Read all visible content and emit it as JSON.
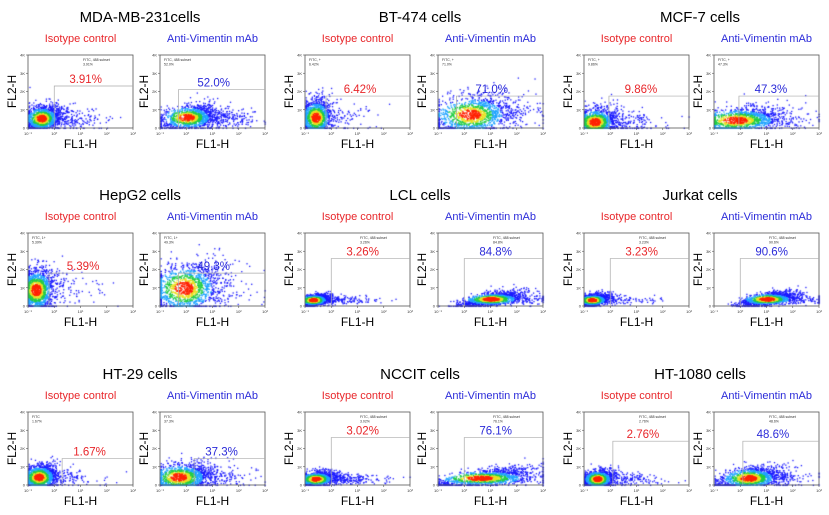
{
  "colors": {
    "isotype": "#e8262a",
    "anti": "#2b2bd9",
    "density_low": "#1a1aff",
    "density_mid": "#22cc44",
    "density_high": "#ff2200"
  },
  "chart_data": {
    "type": "scatter",
    "subtype": "flow-cytometry density plots",
    "xlabel": "FL1-H",
    "ylabel": "FL2-H",
    "x_scale": "log",
    "x_ticks": [
      "10⁻¹",
      "10⁰",
      "10¹",
      "10²",
      "10³"
    ],
    "y_ticks": [
      "0",
      "1K",
      "2K",
      "3K",
      "4K"
    ],
    "xlim": [
      0.1,
      1000
    ],
    "ylim": [
      0,
      4000
    ],
    "panels": [
      {
        "title": "MDA-MB-231cells",
        "plots": [
          {
            "label": "Isotype control",
            "gate_label": "FITC, 488 subset",
            "gate_pct": "3.91%",
            "pct": "3.91%"
          },
          {
            "label": "Anti-Vimentin mAb",
            "gate_label": "FITC, 488 subset",
            "gate_pct": "52.0%",
            "pct": "52.0%"
          }
        ]
      },
      {
        "title": "BT-474 cells",
        "plots": [
          {
            "label": "Isotype control",
            "gate_label": "FITC, +",
            "gate_pct": "6.42%",
            "pct": "6.42%"
          },
          {
            "label": "Anti-Vimentin mAb",
            "gate_label": "FITC, +",
            "gate_pct": "71.0%",
            "pct": "71.0%"
          }
        ]
      },
      {
        "title": "MCF-7 cells",
        "plots": [
          {
            "label": "Isotype control",
            "gate_label": "FITC, +",
            "gate_pct": "9.86%",
            "pct": "9.86%"
          },
          {
            "label": "Anti-Vimentin mAb",
            "gate_label": "FITC, +",
            "gate_pct": "47.3%",
            "pct": "47.3%"
          }
        ]
      },
      {
        "title": "HepG2 cells",
        "plots": [
          {
            "label": "Isotype control",
            "gate_label": "FITC, 1+",
            "gate_pct": "5.39%",
            "pct": "5.39%"
          },
          {
            "label": "Anti-Vimentin mAb",
            "gate_label": "FITC, 1+",
            "gate_pct": "49.3%",
            "pct": "49.3%"
          }
        ]
      },
      {
        "title": "LCL cells",
        "plots": [
          {
            "label": "Isotype control",
            "gate_label": "FITC, 488 subset",
            "gate_pct": "3.26%",
            "pct": "3.26%"
          },
          {
            "label": "Anti-Vimentin mAb",
            "gate_label": "FITC, 488 subset",
            "gate_pct": "84.8%",
            "pct": "84.8%"
          }
        ]
      },
      {
        "title": "Jurkat cells",
        "plots": [
          {
            "label": "Isotype control",
            "gate_label": "FITC, 488 subset",
            "gate_pct": "3.23%",
            "pct": "3.23%"
          },
          {
            "label": "Anti-Vimentin mAb",
            "gate_label": "FITC, 488 subset",
            "gate_pct": "90.6%",
            "pct": "90.6%"
          }
        ]
      },
      {
        "title": "HT-29 cells",
        "plots": [
          {
            "label": "Isotype control",
            "gate_label": "FITC",
            "gate_pct": "1.67%",
            "pct": "1.67%"
          },
          {
            "label": "Anti-Vimentin mAb",
            "gate_label": "FITC",
            "gate_pct": "37.3%",
            "pct": "37.3%"
          }
        ]
      },
      {
        "title": "NCCIT cells",
        "plots": [
          {
            "label": "Isotype control",
            "gate_label": "FITC, 488 subset",
            "gate_pct": "3.02%",
            "pct": "3.02%"
          },
          {
            "label": "Anti-Vimentin mAb",
            "gate_label": "FITC, 488 subset",
            "gate_pct": "76.1%",
            "pct": "76.1%"
          }
        ]
      },
      {
        "title": "HT-1080 cells",
        "plots": [
          {
            "label": "Isotype control",
            "gate_label": "FITC, 488 subset",
            "gate_pct": "2.76%",
            "pct": "2.76%"
          },
          {
            "label": "Anti-Vimentin mAb",
            "gate_label": "FITC, 488 subset",
            "gate_pct": "48.6%",
            "pct": "48.6%"
          }
        ]
      }
    ]
  }
}
